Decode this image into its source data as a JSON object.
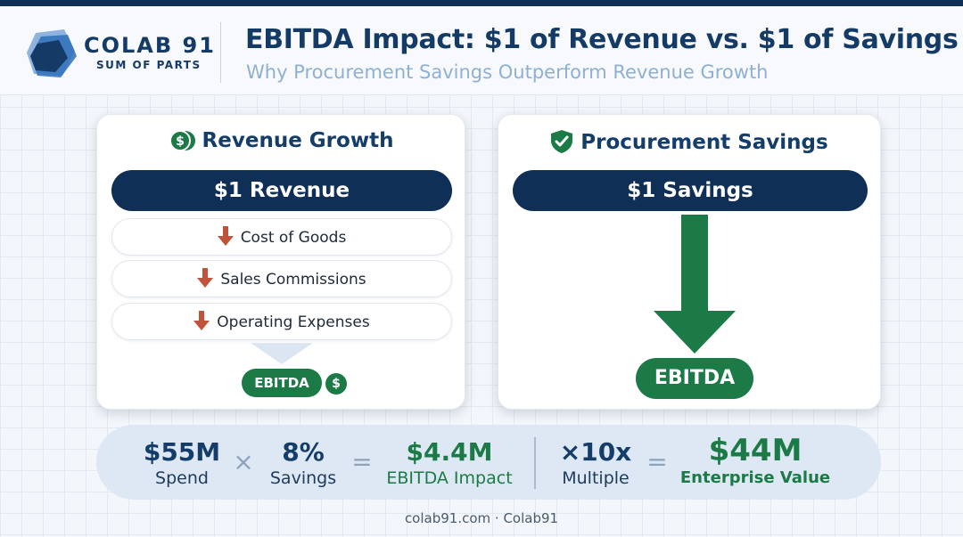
{
  "brand": {
    "name": "COLAB 91",
    "tagline": "SUM OF PARTS"
  },
  "header": {
    "title": "EBITDA Impact: $1 of Revenue vs. $1 of Savings",
    "subtitle": "Why Procurement Savings Outperform Revenue Growth"
  },
  "revenue_card": {
    "title": "Revenue Growth",
    "icon": "dollar-coins-icon",
    "input": "$1 Revenue",
    "deductions": [
      "Cost of Goods",
      "Sales Commissions",
      "Operating Expenses"
    ],
    "result": "EBITDA",
    "result_badge": "$"
  },
  "savings_card": {
    "title": "Procurement Savings",
    "icon": "shield-check-icon",
    "input": "$1 Savings",
    "result": "EBITDA"
  },
  "formula": {
    "spend": {
      "value": "$55M",
      "label": "Spend"
    },
    "op_multiply": "×",
    "savings": {
      "value": "8%",
      "label": "Savings"
    },
    "op_equals_1": "=",
    "impact": {
      "value": "$4.4M",
      "label": "EBITDA Impact"
    },
    "multiple": {
      "value": "×10x",
      "label": "Multiple"
    },
    "op_equals_2": "=",
    "ev": {
      "value": "$44M",
      "label": "Enterprise Value"
    }
  },
  "footer": "colab91.com · Colab91",
  "colors": {
    "navy": "#0f2f57",
    "green": "#1b7a45",
    "red_arrow": "#c0533a",
    "subtitle_blue": "#8fb0d2"
  }
}
